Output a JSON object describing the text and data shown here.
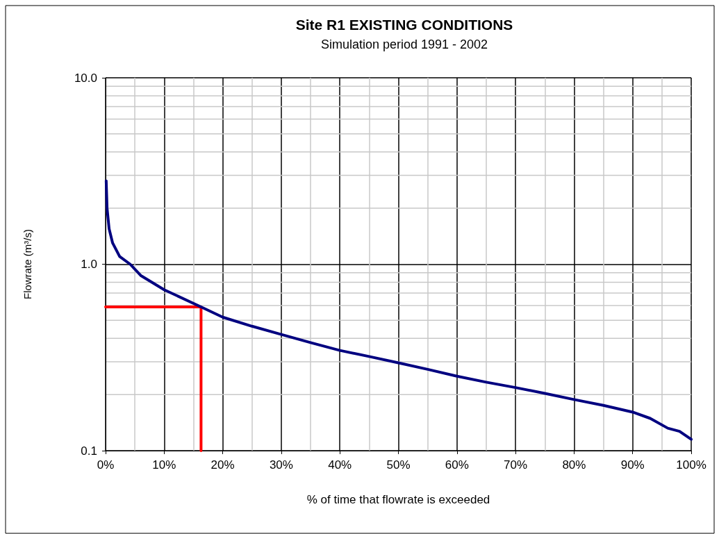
{
  "chart_data": {
    "type": "line",
    "title": "Site R1 EXISTING CONDITIONS",
    "subtitle": "Simulation period 1991 - 2002",
    "xlabel": "% of time that flowrate is exceeded",
    "ylabel": "Flowrate (m³/s)",
    "log": "y",
    "grid": true,
    "marker": "none",
    "line_style": "solid",
    "xlim": [
      0,
      100
    ],
    "xticks": [
      {
        "value": 0,
        "label": "0%"
      },
      {
        "value": 10,
        "label": "10%"
      },
      {
        "value": 20,
        "label": "20%"
      },
      {
        "value": 30,
        "label": "30%"
      },
      {
        "value": 40,
        "label": "40%"
      },
      {
        "value": 50,
        "label": "50%"
      },
      {
        "value": 60,
        "label": "60%"
      },
      {
        "value": 70,
        "label": "70%"
      },
      {
        "value": 80,
        "label": "80%"
      },
      {
        "value": 90,
        "label": "90%"
      },
      {
        "value": 100,
        "label": "100%"
      }
    ],
    "ylim": [
      0.1,
      10
    ],
    "yticks": [
      {
        "value": 0.1,
        "label": "0.1"
      },
      {
        "value": 1,
        "label": "1.0"
      },
      {
        "value": 10,
        "label": "10.0"
      }
    ],
    "series": [
      {
        "color": "#000080",
        "x": [
          0.1,
          0.25,
          0.6,
          1.2,
          2.4,
          4.2,
          6,
          10,
          16.3,
          20,
          25,
          30,
          35,
          40,
          45,
          50,
          55,
          60,
          65,
          70,
          75,
          80,
          85,
          90,
          93,
          96,
          98,
          100
        ],
        "values": [
          2.8,
          2.0,
          1.55,
          1.3,
          1.1,
          1.0,
          0.87,
          0.73,
          0.59,
          0.52,
          0.465,
          0.42,
          0.38,
          0.345,
          0.32,
          0.296,
          0.273,
          0.251,
          0.233,
          0.218,
          0.203,
          0.188,
          0.175,
          0.161,
          0.149,
          0.132,
          0.127,
          0.115
        ]
      },
      {
        "color": "#ff0000",
        "x": [
          0,
          16.3,
          16.3
        ],
        "values": [
          0.59,
          0.59,
          0.1
        ]
      }
    ]
  }
}
